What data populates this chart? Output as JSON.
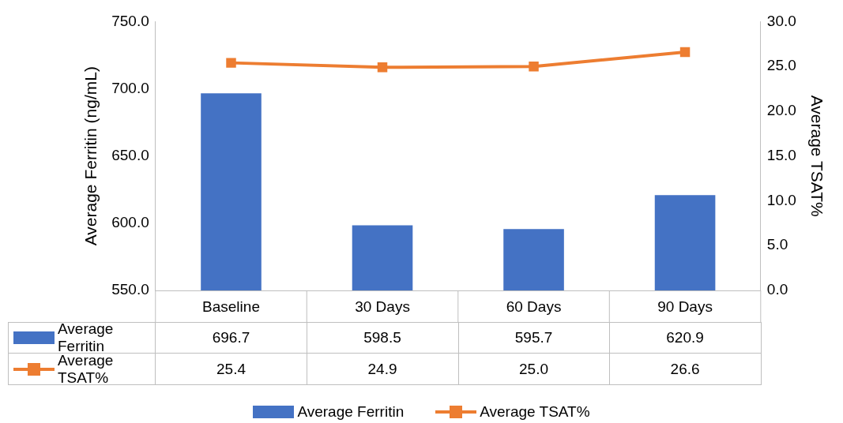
{
  "chart_data": {
    "type": "bar",
    "ylabel": "Average Ferritin (ng/mL)",
    "y2label": "Average TSAT%",
    "categories": [
      "Baseline",
      "30 Days",
      "60 Days",
      "90 Days"
    ],
    "series": [
      {
        "name": "Average Ferritin",
        "color": "#4472c4",
        "values": [
          696.7,
          598.5,
          595.7,
          620.9
        ],
        "value_labels": [
          "696.7",
          "598.5",
          "595.7",
          "620.9"
        ]
      },
      {
        "name": "Average TSAT%",
        "type": "line",
        "axis": "y2",
        "color": "#ed7d31",
        "marker": "square",
        "values": [
          25.4,
          24.9,
          25.0,
          26.6
        ],
        "value_labels": [
          "25.4",
          "24.9",
          "25.0",
          "26.6"
        ]
      }
    ],
    "ylim": [
      550,
      750
    ],
    "yticks": [
      {
        "value": 550,
        "label": "550.0"
      },
      {
        "value": 600,
        "label": "600.0"
      },
      {
        "value": 650,
        "label": "650.0"
      },
      {
        "value": 700,
        "label": "700.0"
      },
      {
        "value": 750,
        "label": "750.0"
      }
    ],
    "y2lim": [
      0,
      30
    ],
    "y2ticks": [
      {
        "value": 0,
        "label": "0.0"
      },
      {
        "value": 5,
        "label": "5.0"
      },
      {
        "value": 10,
        "label": "10.0"
      },
      {
        "value": 15,
        "label": "15.0"
      },
      {
        "value": 20,
        "label": "20.0"
      },
      {
        "value": 25,
        "label": "25.0"
      },
      {
        "value": 30,
        "label": "30.0"
      }
    ],
    "grid": false,
    "legend": "bottom"
  }
}
